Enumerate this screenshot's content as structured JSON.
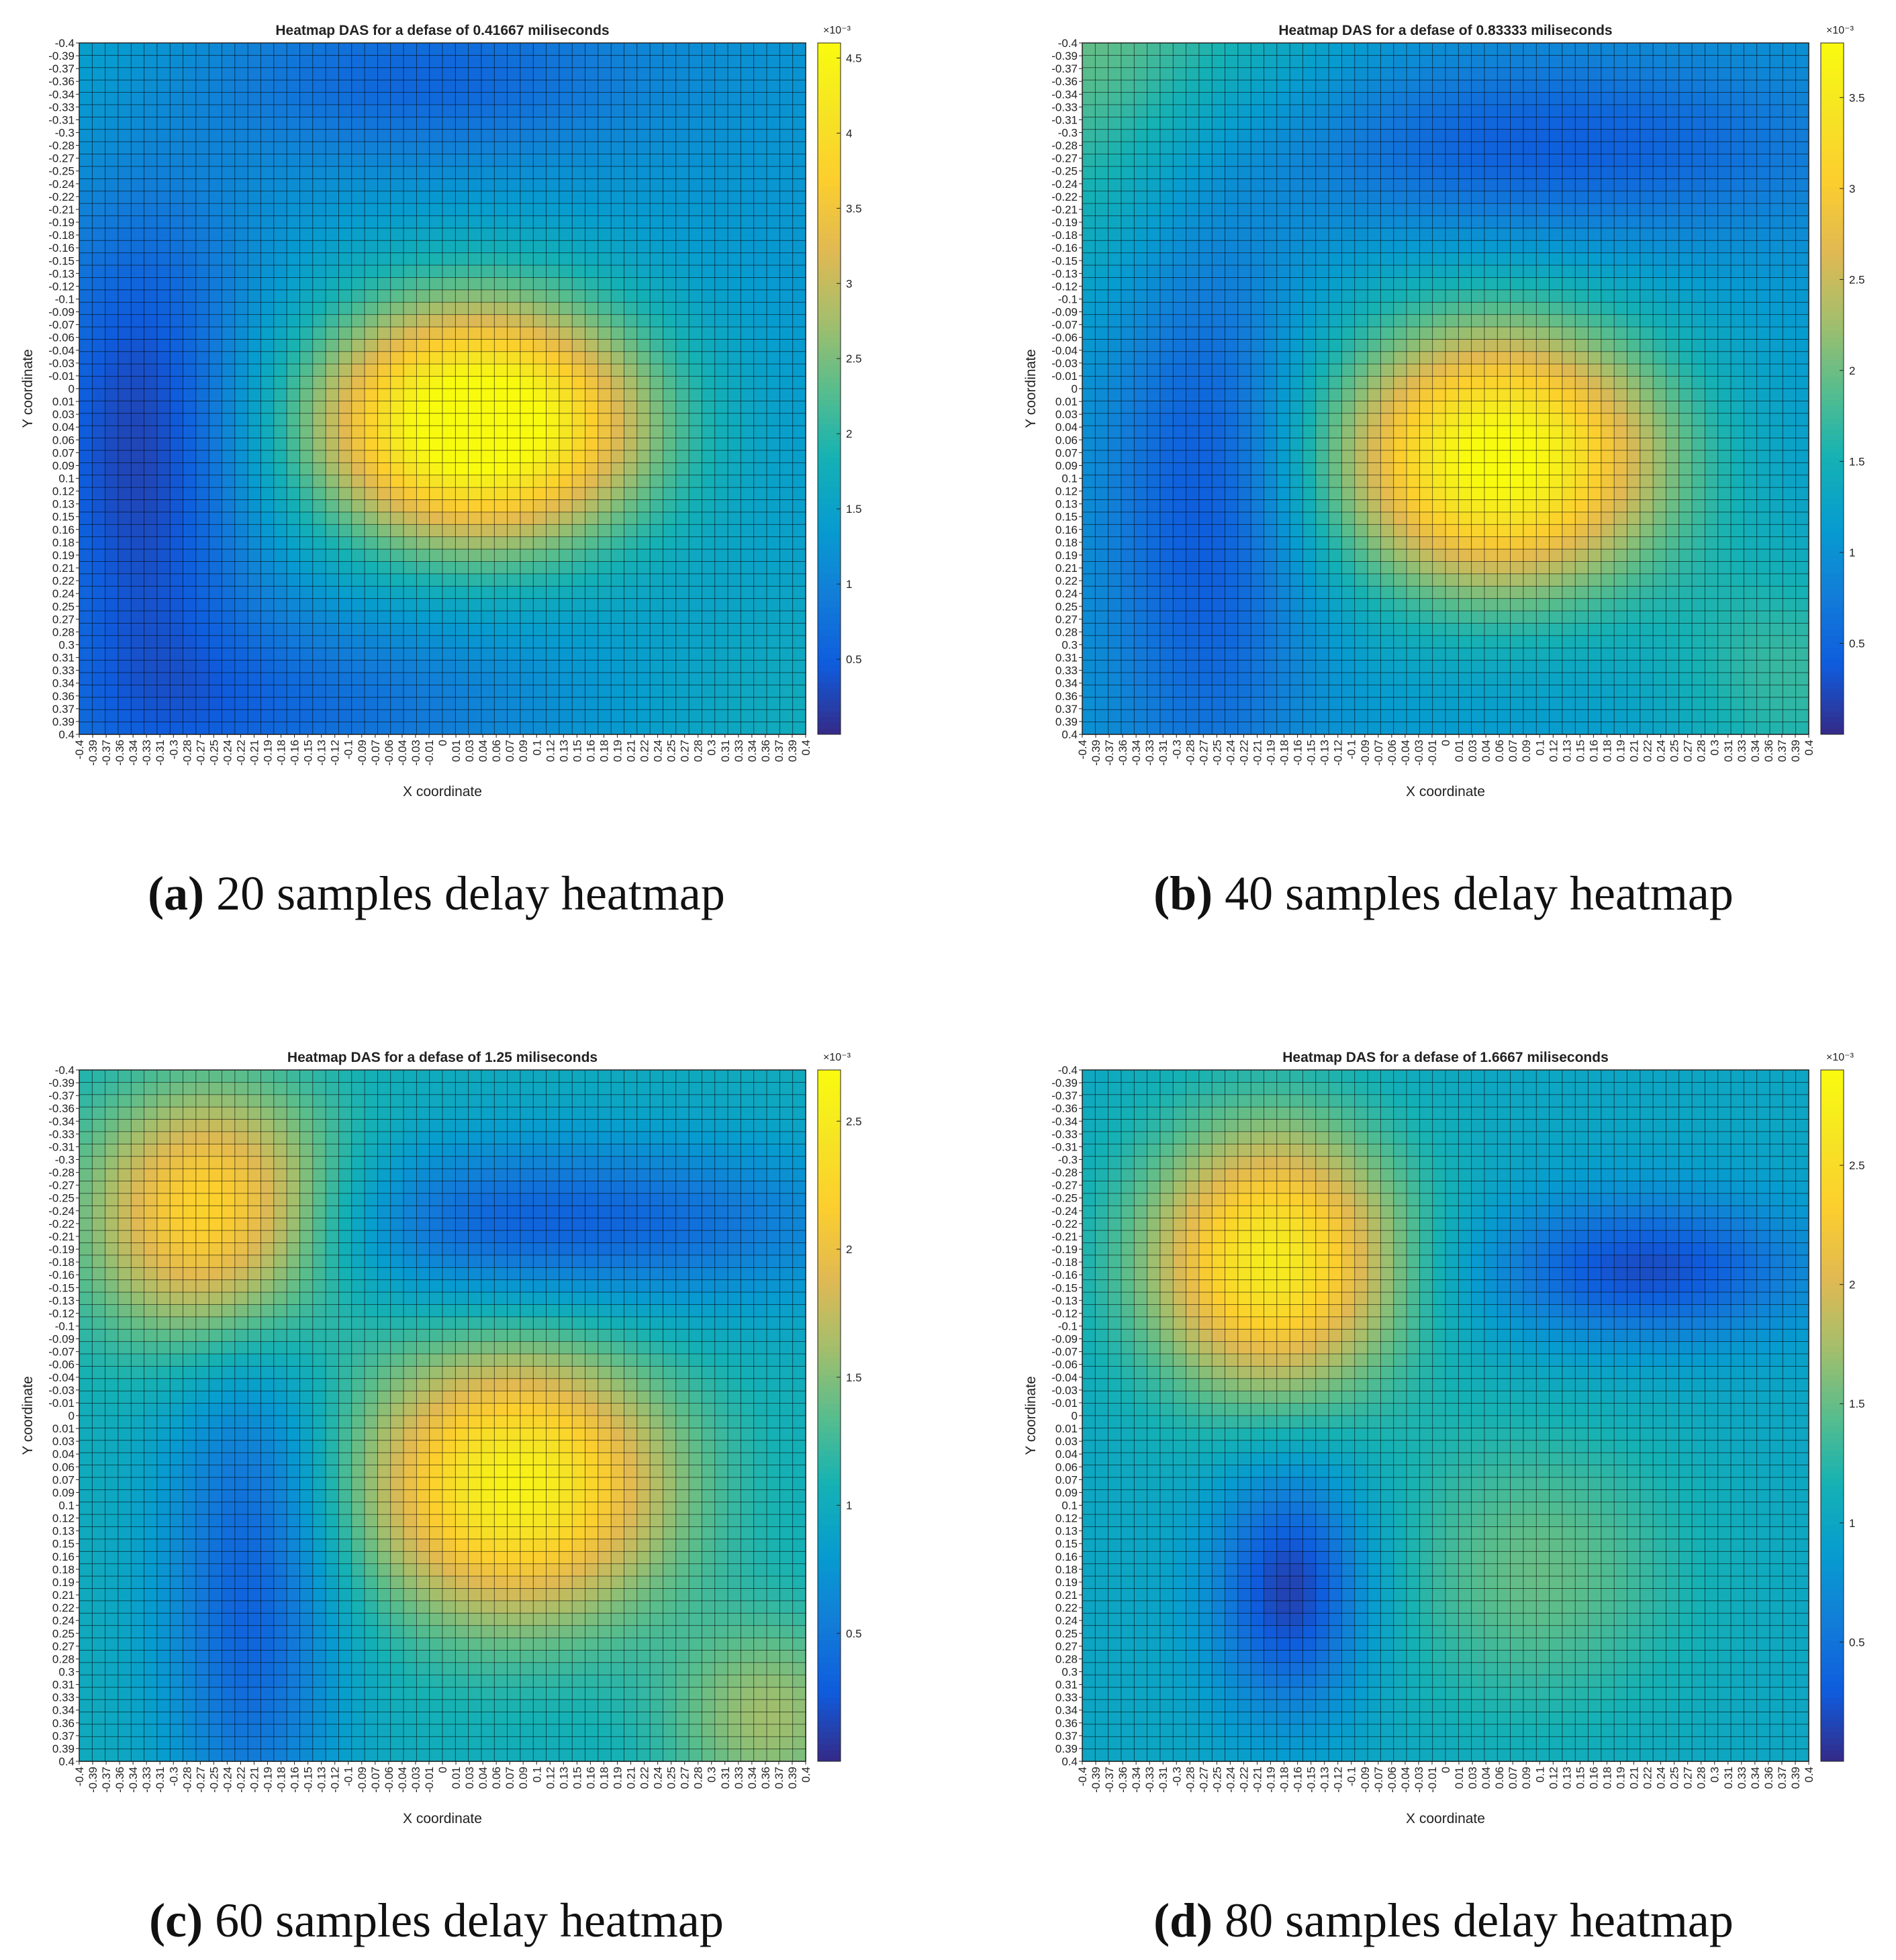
{
  "figure": {
    "panels": [
      {
        "caption_label": "(a)",
        "caption_text": "20 samples delay heatmap",
        "chart_data": {
          "type": "heatmap",
          "title": "Heatmap DAS for a defase of 0.41667 miliseconds",
          "xlabel": "X coordinate",
          "ylabel": "Y coordinate",
          "x_range": [
            -0.4,
            0.4
          ],
          "y_range": [
            -0.4,
            0.4
          ],
          "y_axis_reversed": true,
          "grid_cells": [
            56,
            56
          ],
          "colormap": "parula",
          "colorbar": {
            "exponent_label": "×10⁻³",
            "range": [
              0.0,
              4.6
            ],
            "ticks": [
              "0.5",
              "1",
              "1.5",
              "2",
              "2.5",
              "3",
              "3.5",
              "4",
              "4.5"
            ]
          },
          "components": [
            {
              "kind": "peak",
              "x": 0.04,
              "y": 0.04,
              "amp": 3.8,
              "sx": 0.13,
              "sy": 0.1
            },
            {
              "kind": "valley",
              "x": -0.33,
              "y": 0.07,
              "amp": 1.1,
              "sx": 0.09,
              "sy": 0.22
            },
            {
              "kind": "valley",
              "x": -0.02,
              "y": -0.36,
              "amp": 0.7,
              "sx": 0.18,
              "sy": 0.07
            },
            {
              "kind": "valley",
              "x": -0.18,
              "y": 0.37,
              "amp": 0.6,
              "sx": 0.2,
              "sy": 0.08
            },
            {
              "kind": "peak",
              "x": 0.4,
              "y": 0.4,
              "amp": 0.4,
              "sx": 0.15,
              "sy": 0.15
            },
            {
              "kind": "peak",
              "x": -0.4,
              "y": -0.4,
              "amp": 0.3,
              "sx": 0.12,
              "sy": 0.12
            }
          ],
          "baseline": 1.3
        }
      },
      {
        "caption_label": "(b)",
        "caption_text": "40 samples delay heatmap",
        "chart_data": {
          "type": "heatmap",
          "title": "Heatmap DAS for a defase of 0.83333 miliseconds",
          "xlabel": "X coordinate",
          "ylabel": "Y coordinate",
          "x_range": [
            -0.4,
            0.4
          ],
          "y_range": [
            -0.4,
            0.4
          ],
          "y_axis_reversed": true,
          "grid_cells": [
            56,
            56
          ],
          "colormap": "parula",
          "colorbar": {
            "exponent_label": "×10⁻³",
            "range": [
              0.0,
              3.8
            ],
            "ticks": [
              "0.5",
              "1",
              "1.5",
              "2",
              "2.5",
              "3",
              "3.5"
            ]
          },
          "components": [
            {
              "kind": "peak",
              "x": 0.06,
              "y": 0.08,
              "amp": 2.8,
              "sx": 0.13,
              "sy": 0.11
            },
            {
              "kind": "valley",
              "x": -0.26,
              "y": 0.12,
              "amp": 0.8,
              "sx": 0.08,
              "sy": 0.25
            },
            {
              "kind": "valley",
              "x": 0.1,
              "y": -0.28,
              "amp": 0.7,
              "sx": 0.25,
              "sy": 0.08
            },
            {
              "kind": "peak",
              "x": -0.4,
              "y": -0.4,
              "amp": 0.9,
              "sx": 0.18,
              "sy": 0.18
            },
            {
              "kind": "peak",
              "x": 0.38,
              "y": 0.33,
              "amp": 0.6,
              "sx": 0.1,
              "sy": 0.1
            }
          ],
          "baseline": 1.1
        }
      },
      {
        "caption_label": "(c)",
        "caption_text": "60 samples delay heatmap",
        "chart_data": {
          "type": "heatmap",
          "title": "Heatmap DAS for a defase of 1.25 miliseconds",
          "xlabel": "X coordinate",
          "ylabel": "Y coordinate",
          "x_range": [
            -0.4,
            0.4
          ],
          "y_range": [
            -0.4,
            0.4
          ],
          "y_axis_reversed": true,
          "grid_cells": [
            56,
            56
          ],
          "colormap": "parula",
          "colorbar": {
            "exponent_label": "×10⁻³",
            "range": [
              0.0,
              2.7
            ],
            "ticks": [
              "0.5",
              "1",
              "1.5",
              "2",
              "2.5"
            ]
          },
          "components": [
            {
              "kind": "peak",
              "x": -0.25,
              "y": -0.23,
              "amp": 1.5,
              "sx": 0.1,
              "sy": 0.1
            },
            {
              "kind": "peak",
              "x": 0.08,
              "y": 0.08,
              "amp": 1.6,
              "sx": 0.12,
              "sy": 0.11
            },
            {
              "kind": "valley",
              "x": -0.21,
              "y": 0.2,
              "amp": 0.7,
              "sx": 0.07,
              "sy": 0.22
            },
            {
              "kind": "valley",
              "x": 0.12,
              "y": -0.22,
              "amp": 0.7,
              "sx": 0.25,
              "sy": 0.07
            },
            {
              "kind": "peak",
              "x": 0.36,
              "y": 0.35,
              "amp": 0.6,
              "sx": 0.08,
              "sy": 0.08
            }
          ],
          "baseline": 1.0
        }
      },
      {
        "caption_label": "(d)",
        "caption_text": "80 samples delay heatmap",
        "chart_data": {
          "type": "heatmap",
          "title": "Heatmap DAS for a defase of 1.6667 miliseconds",
          "xlabel": "X coordinate",
          "ylabel": "Y coordinate",
          "x_range": [
            -0.4,
            0.4
          ],
          "y_range": [
            -0.4,
            0.4
          ],
          "y_axis_reversed": true,
          "grid_cells": [
            56,
            56
          ],
          "colormap": "parula",
          "colorbar": {
            "exponent_label": "×10⁻³",
            "range": [
              0.0,
              2.9
            ],
            "ticks": [
              "0.5",
              "1",
              "1.5",
              "2",
              "2.5"
            ]
          },
          "components": [
            {
              "kind": "peak",
              "x": -0.19,
              "y": -0.18,
              "amp": 1.7,
              "sx": 0.1,
              "sy": 0.11
            },
            {
              "kind": "valley",
              "x": -0.17,
              "y": 0.2,
              "amp": 0.9,
              "sx": 0.06,
              "sy": 0.1
            },
            {
              "kind": "valley",
              "x": 0.22,
              "y": -0.17,
              "amp": 0.8,
              "sx": 0.13,
              "sy": 0.06
            },
            {
              "kind": "peak",
              "x": 0.1,
              "y": 0.18,
              "amp": 0.5,
              "sx": 0.12,
              "sy": 0.12
            }
          ],
          "baseline": 1.0
        }
      }
    ],
    "x_tick_labels": [
      "-0.4",
      "-0.39",
      "-0.37",
      "-0.36",
      "-0.34",
      "-0.33",
      "-0.31",
      "-0.3",
      "-0.28",
      "-0.27",
      "-0.25",
      "-0.24",
      "-0.22",
      "-0.21",
      "-0.19",
      "-0.18",
      "-0.16",
      "-0.15",
      "-0.13",
      "-0.12",
      "-0.1",
      "-0.09",
      "-0.07",
      "-0.06",
      "-0.04",
      "-0.03",
      "-0.01",
      "0",
      "0.01",
      "0.03",
      "0.04",
      "0.06",
      "0.07",
      "0.09",
      "0.1",
      "0.12",
      "0.13",
      "0.15",
      "0.16",
      "0.18",
      "0.19",
      "0.21",
      "0.22",
      "0.24",
      "0.25",
      "0.27",
      "0.28",
      "0.3",
      "0.31",
      "0.33",
      "0.34",
      "0.36",
      "0.37",
      "0.39",
      "0.4"
    ],
    "y_tick_labels": [
      "-0.4",
      "-0.39",
      "-0.37",
      "-0.36",
      "-0.34",
      "-0.33",
      "-0.31",
      "-0.3",
      "-0.28",
      "-0.27",
      "-0.25",
      "-0.24",
      "-0.22",
      "-0.21",
      "-0.19",
      "-0.18",
      "-0.16",
      "-0.15",
      "-0.13",
      "-0.12",
      "-0.1",
      "-0.09",
      "-0.07",
      "-0.06",
      "-0.04",
      "-0.03",
      "-0.01",
      "0",
      "0.01",
      "0.03",
      "0.04",
      "0.06",
      "0.07",
      "0.09",
      "0.1",
      "0.12",
      "0.13",
      "0.15",
      "0.16",
      "0.18",
      "0.19",
      "0.21",
      "0.22",
      "0.24",
      "0.25",
      "0.27",
      "0.28",
      "0.3",
      "0.31",
      "0.33",
      "0.34",
      "0.36",
      "0.37",
      "0.39",
      "0.4"
    ]
  }
}
